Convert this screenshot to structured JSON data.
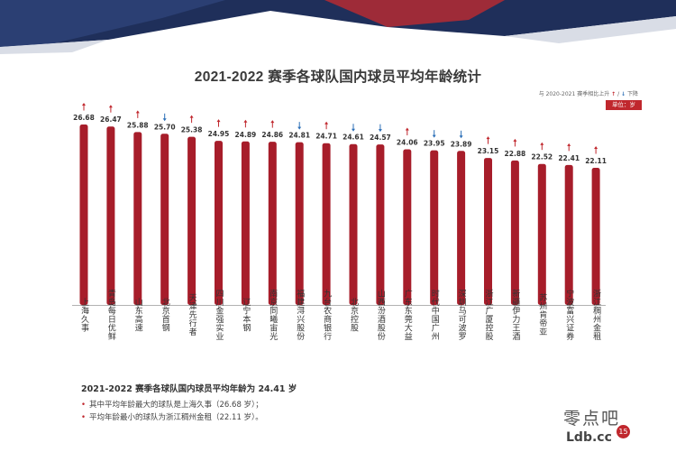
{
  "chart_data": {
    "type": "bar",
    "title": "2021-2022 赛季各球队国内球员平均年龄统计",
    "legend_text": "与 2020-2021 赛季相比上升",
    "legend_down_text": "下降",
    "unit": "单位：岁",
    "categories": [
      "上海久事",
      "青岛每日优鲜",
      "山东高速",
      "北京首钢",
      "天津先行者",
      "四川金强实业",
      "辽宁本钢",
      "南京同曦宙光",
      "福建浔兴股份",
      "九台农商银行",
      "北京控股",
      "山西汾酒股份",
      "广东东莞大益",
      "时代中国广州",
      "深圳马可波罗",
      "浙江广厦控股",
      "新疆伊力王酒",
      "苏州肯帝亚",
      "宁波富兴证券",
      "浙江稠州金租"
    ],
    "values": [
      26.68,
      26.47,
      25.88,
      25.7,
      25.38,
      24.95,
      24.89,
      24.86,
      24.81,
      24.71,
      24.61,
      24.57,
      24.06,
      23.95,
      23.89,
      23.15,
      22.88,
      22.52,
      22.41,
      22.11
    ],
    "value_labels": [
      "26.68",
      "26.47",
      "25.88",
      "25.70",
      "25.38",
      "24.95",
      "24.89",
      "24.86",
      "24.81",
      "24.71",
      "24.61",
      "24.57",
      "24.06",
      "23.95",
      "23.89",
      "23.15",
      "22.88",
      "22.52",
      "22.41",
      "22.11"
    ],
    "trend": [
      "up",
      "up",
      "up",
      "down",
      "up",
      "up",
      "up",
      "up",
      "down",
      "up",
      "down",
      "down",
      "up",
      "down",
      "down",
      "up",
      "up",
      "up",
      "up",
      "up"
    ],
    "bar_color": "#a71d2a",
    "up_color": "#c0272d",
    "down_color": "#2c6fb7"
  },
  "summary": {
    "title": "2021-2022 赛季各球队国内球员平均年龄为 24.41 岁",
    "bullets": [
      "其中平均年龄最大的球队是上海久事（26.68 岁）；",
      "平均年龄最小的球队为浙江稠州金租（22.11 岁）。"
    ]
  },
  "watermark": {
    "text": "零点吧",
    "url": "Ldb.cc",
    "page": "15"
  }
}
